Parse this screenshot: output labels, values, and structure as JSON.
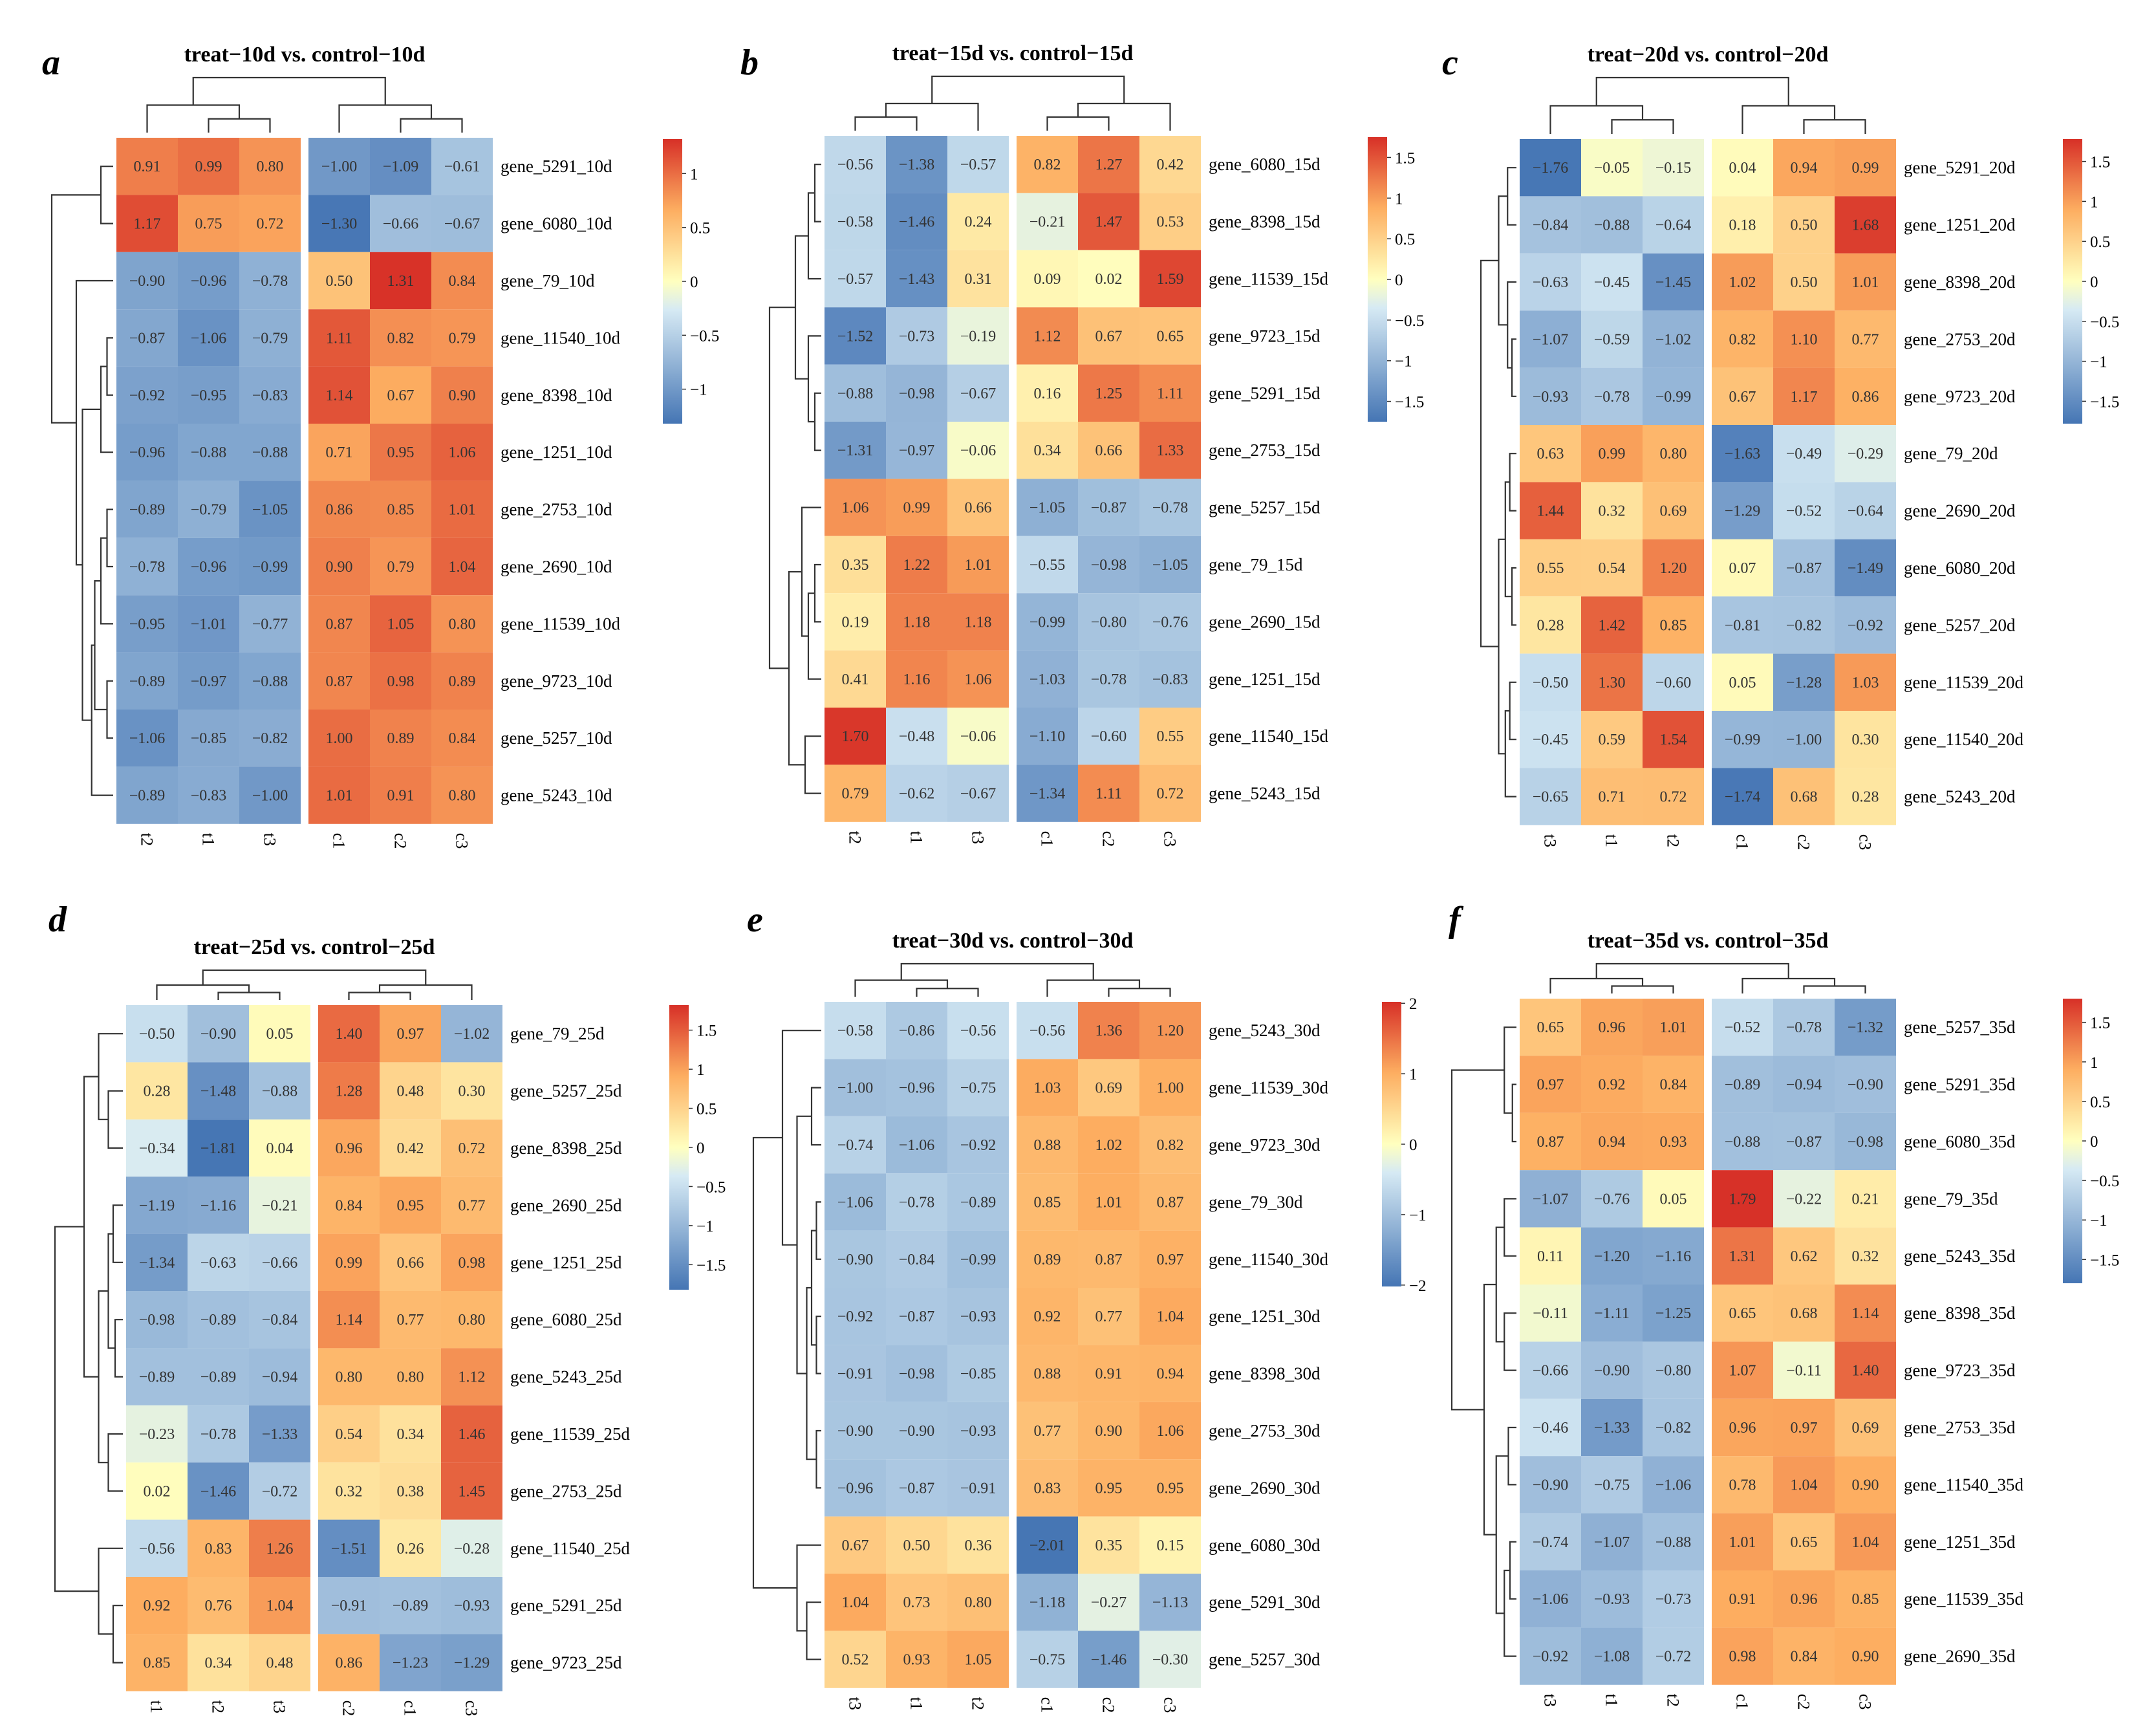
{
  "colors": {
    "low": "#4575b4",
    "mid_low": "#d6eaf4",
    "mid": "#ffffbf",
    "mid_high": "#fdae61",
    "high": "#d73027"
  },
  "chart_data": [
    {
      "type": "heatmap",
      "panel": "a",
      "title": "treat−10d vs. control−10d",
      "columns": [
        "t2",
        "t1",
        "t3",
        "c1",
        "c2",
        "c3"
      ],
      "rows": [
        "gene_5291_10d",
        "gene_6080_10d",
        "gene_79_10d",
        "gene_11540_10d",
        "gene_8398_10d",
        "gene_1251_10d",
        "gene_2753_10d",
        "gene_2690_10d",
        "gene_11539_10d",
        "gene_9723_10d",
        "gene_5257_10d",
        "gene_5243_10d"
      ],
      "values": [
        [
          0.91,
          0.99,
          0.8,
          -1.0,
          -1.09,
          -0.61
        ],
        [
          1.17,
          0.75,
          0.72,
          -1.3,
          -0.66,
          -0.67
        ],
        [
          -0.9,
          -0.96,
          -0.78,
          0.5,
          1.31,
          0.84
        ],
        [
          -0.87,
          -1.06,
          -0.79,
          1.11,
          0.82,
          0.79
        ],
        [
          -0.92,
          -0.95,
          -0.83,
          1.14,
          0.67,
          0.9
        ],
        [
          -0.96,
          -0.88,
          -0.88,
          0.71,
          0.95,
          1.06
        ],
        [
          -0.89,
          -0.79,
          -1.05,
          0.86,
          0.85,
          1.01
        ],
        [
          -0.78,
          -0.96,
          -0.99,
          0.9,
          0.79,
          1.04
        ],
        [
          -0.95,
          -1.01,
          -0.77,
          0.87,
          1.05,
          0.8
        ],
        [
          -0.89,
          -0.97,
          -0.88,
          0.87,
          0.98,
          0.89
        ],
        [
          -1.06,
          -0.85,
          -0.82,
          1.0,
          0.89,
          0.84
        ],
        [
          -0.89,
          -0.83,
          -1.0,
          1.01,
          0.91,
          0.8
        ]
      ],
      "color_range": [
        -1.32,
        1.32
      ],
      "colorbar_ticks": [
        1,
        0.5,
        0,
        -0.5,
        -1
      ],
      "colorbar_labels": [
        "1",
        "0.5",
        "0",
        "−0.5",
        "−1"
      ]
    },
    {
      "type": "heatmap",
      "panel": "b",
      "title": "treat−15d vs. control−15d",
      "columns": [
        "t2",
        "t1",
        "t3",
        "c1",
        "c2",
        "c3"
      ],
      "rows": [
        "gene_6080_15d",
        "gene_8398_15d",
        "gene_11539_15d",
        "gene_9723_15d",
        "gene_5291_15d",
        "gene_2753_15d",
        "gene_5257_15d",
        "gene_79_15d",
        "gene_2690_15d",
        "gene_1251_15d",
        "gene_11540_15d",
        "gene_5243_15d"
      ],
      "values": [
        [
          -0.56,
          -1.38,
          -0.57,
          0.82,
          1.27,
          0.42
        ],
        [
          -0.58,
          -1.46,
          0.24,
          -0.21,
          1.47,
          0.53
        ],
        [
          -0.57,
          -1.43,
          0.31,
          0.09,
          0.02,
          1.59
        ],
        [
          -1.52,
          -0.73,
          -0.19,
          1.12,
          0.67,
          0.65
        ],
        [
          -0.88,
          -0.98,
          -0.67,
          0.16,
          1.25,
          1.11
        ],
        [
          -1.31,
          -0.97,
          -0.06,
          0.34,
          0.66,
          1.33
        ],
        [
          1.06,
          0.99,
          0.66,
          -1.05,
          -0.87,
          -0.78
        ],
        [
          0.35,
          1.22,
          1.01,
          -0.55,
          -0.98,
          -1.05
        ],
        [
          0.19,
          1.18,
          1.18,
          -0.99,
          -0.8,
          -0.76
        ],
        [
          0.41,
          1.16,
          1.06,
          -1.03,
          -0.78,
          -0.83
        ],
        [
          1.7,
          -0.48,
          -0.06,
          -1.1,
          -0.6,
          0.55
        ],
        [
          0.79,
          -0.62,
          -0.67,
          -1.34,
          1.11,
          0.72
        ]
      ],
      "color_range": [
        -1.75,
        1.75
      ],
      "colorbar_ticks": [
        1.5,
        1,
        0.5,
        0,
        -0.5,
        -1,
        -1.5
      ],
      "colorbar_labels": [
        "1.5",
        "1",
        "0.5",
        "0",
        "−0.5",
        "−1",
        "−1.5"
      ]
    },
    {
      "type": "heatmap",
      "panel": "c",
      "title": "treat−20d vs. control−20d",
      "columns": [
        "t3",
        "t1",
        "t2",
        "c1",
        "c2",
        "c3"
      ],
      "rows": [
        "gene_5291_20d",
        "gene_1251_20d",
        "gene_8398_20d",
        "gene_2753_20d",
        "gene_9723_20d",
        "gene_79_20d",
        "gene_2690_20d",
        "gene_6080_20d",
        "gene_5257_20d",
        "gene_11539_20d",
        "gene_11540_20d",
        "gene_5243_20d"
      ],
      "values": [
        [
          -1.76,
          -0.05,
          -0.15,
          0.04,
          0.94,
          0.99
        ],
        [
          -0.84,
          -0.88,
          -0.64,
          0.18,
          0.5,
          1.68
        ],
        [
          -0.63,
          -0.45,
          -1.45,
          1.02,
          0.5,
          1.01
        ],
        [
          -1.07,
          -0.59,
          -1.02,
          0.82,
          1.1,
          0.77
        ],
        [
          -0.93,
          -0.78,
          -0.99,
          0.67,
          1.17,
          0.86
        ],
        [
          0.63,
          0.99,
          0.8,
          -1.63,
          -0.49,
          -0.29
        ],
        [
          1.44,
          0.32,
          0.69,
          -1.29,
          -0.52,
          -0.64
        ],
        [
          0.55,
          0.54,
          1.2,
          0.07,
          -0.87,
          -1.49
        ],
        [
          0.28,
          1.42,
          0.85,
          -0.81,
          -0.82,
          -0.92
        ],
        [
          -0.5,
          1.3,
          -0.6,
          0.05,
          -1.28,
          1.03
        ],
        [
          -0.45,
          0.59,
          1.54,
          -0.99,
          -1.0,
          0.3
        ],
        [
          -0.65,
          0.71,
          0.72,
          -1.74,
          0.68,
          0.28
        ]
      ],
      "color_range": [
        -1.78,
        1.78
      ],
      "colorbar_ticks": [
        1.5,
        1,
        0.5,
        0,
        -0.5,
        -1,
        -1.5
      ],
      "colorbar_labels": [
        "1.5",
        "1",
        "0.5",
        "0",
        "−0.5",
        "−1",
        "−1.5"
      ]
    },
    {
      "type": "heatmap",
      "panel": "d",
      "title": "treat−25d vs. control−25d",
      "columns": [
        "t1",
        "t2",
        "t3",
        "c2",
        "c1",
        "c3"
      ],
      "rows": [
        "gene_79_25d",
        "gene_5257_25d",
        "gene_8398_25d",
        "gene_2690_25d",
        "gene_1251_25d",
        "gene_6080_25d",
        "gene_5243_25d",
        "gene_11539_25d",
        "gene_2753_25d",
        "gene_11540_25d",
        "gene_5291_25d",
        "gene_9723_25d"
      ],
      "values": [
        [
          -0.5,
          -0.9,
          0.05,
          1.4,
          0.97,
          -1.02
        ],
        [
          0.28,
          -1.48,
          -0.88,
          1.28,
          0.48,
          0.3
        ],
        [
          -0.34,
          -1.81,
          0.04,
          0.96,
          0.42,
          0.72
        ],
        [
          -1.19,
          -1.16,
          -0.21,
          0.84,
          0.95,
          0.77
        ],
        [
          -1.34,
          -0.63,
          -0.66,
          0.99,
          0.66,
          0.98
        ],
        [
          -0.98,
          -0.89,
          -0.84,
          1.14,
          0.77,
          0.8
        ],
        [
          -0.89,
          -0.89,
          -0.94,
          0.8,
          0.8,
          1.12
        ],
        [
          -0.23,
          -0.78,
          -1.33,
          0.54,
          0.34,
          1.46
        ],
        [
          0.02,
          -1.46,
          -0.72,
          0.32,
          0.38,
          1.45
        ],
        [
          -0.56,
          0.83,
          1.26,
          -1.51,
          0.26,
          -0.28
        ],
        [
          0.92,
          0.76,
          1.04,
          -0.91,
          -0.89,
          -0.93
        ],
        [
          0.85,
          0.34,
          0.48,
          0.86,
          -1.23,
          -1.29
        ]
      ],
      "color_range": [
        -1.82,
        1.82
      ],
      "colorbar_ticks": [
        1.5,
        1,
        0.5,
        0,
        -0.5,
        -1,
        -1.5
      ],
      "colorbar_labels": [
        "1.5",
        "1",
        "0.5",
        "0",
        "−0.5",
        "−1",
        "−1.5"
      ]
    },
    {
      "type": "heatmap",
      "panel": "e",
      "title": "treat−30d vs. control−30d",
      "columns": [
        "t3",
        "t1",
        "t2",
        "c1",
        "c2",
        "c3"
      ],
      "rows": [
        "gene_5243_30d",
        "gene_11539_30d",
        "gene_9723_30d",
        "gene_79_30d",
        "gene_11540_30d",
        "gene_1251_30d",
        "gene_8398_30d",
        "gene_2753_30d",
        "gene_2690_30d",
        "gene_6080_30d",
        "gene_5291_30d",
        "gene_5257_30d"
      ],
      "values": [
        [
          -0.58,
          -0.86,
          -0.56,
          -0.56,
          1.36,
          1.2
        ],
        [
          -1.0,
          -0.96,
          -0.75,
          1.03,
          0.69,
          1.0
        ],
        [
          -0.74,
          -1.06,
          -0.92,
          0.88,
          1.02,
          0.82
        ],
        [
          -1.06,
          -0.78,
          -0.89,
          0.85,
          1.01,
          0.87
        ],
        [
          -0.9,
          -0.84,
          -0.99,
          0.89,
          0.87,
          0.97
        ],
        [
          -0.92,
          -0.87,
          -0.93,
          0.92,
          0.77,
          1.04
        ],
        [
          -0.91,
          -0.98,
          -0.85,
          0.88,
          0.91,
          0.94
        ],
        [
          -0.9,
          -0.9,
          -0.93,
          0.77,
          0.9,
          1.06
        ],
        [
          -0.96,
          -0.87,
          -0.91,
          0.83,
          0.95,
          0.95
        ],
        [
          0.67,
          0.5,
          0.36,
          -2.01,
          0.35,
          0.15
        ],
        [
          1.04,
          0.73,
          0.8,
          -1.18,
          -0.27,
          -1.13
        ],
        [
          0.52,
          0.93,
          1.05,
          -0.75,
          -1.46,
          -0.3
        ]
      ],
      "color_range": [
        -2.02,
        2.02
      ],
      "colorbar_ticks": [
        2,
        1,
        0,
        -1,
        -2
      ],
      "colorbar_labels": [
        "2",
        "1",
        "0",
        "−1",
        "−2"
      ]
    },
    {
      "type": "heatmap",
      "panel": "f",
      "title": "treat−35d vs. control−35d",
      "columns": [
        "t3",
        "t1",
        "t2",
        "c1",
        "c2",
        "c3"
      ],
      "rows": [
        "gene_5257_35d",
        "gene_5291_35d",
        "gene_6080_35d",
        "gene_79_35d",
        "gene_5243_35d",
        "gene_8398_35d",
        "gene_9723_35d",
        "gene_2753_35d",
        "gene_11540_35d",
        "gene_1251_35d",
        "gene_11539_35d",
        "gene_2690_35d"
      ],
      "values": [
        [
          0.65,
          0.96,
          1.01,
          -0.52,
          -0.78,
          -1.32
        ],
        [
          0.97,
          0.92,
          0.84,
          -0.89,
          -0.94,
          -0.9
        ],
        [
          0.87,
          0.94,
          0.93,
          -0.88,
          -0.87,
          -0.98
        ],
        [
          -1.07,
          -0.76,
          0.05,
          1.79,
          -0.22,
          0.21
        ],
        [
          0.11,
          -1.2,
          -1.16,
          1.31,
          0.62,
          0.32
        ],
        [
          -0.11,
          -1.11,
          -1.25,
          0.65,
          0.68,
          1.14
        ],
        [
          -0.66,
          -0.9,
          -0.8,
          1.07,
          -0.11,
          1.4
        ],
        [
          -0.46,
          -1.33,
          -0.82,
          0.96,
          0.97,
          0.69
        ],
        [
          -0.9,
          -0.75,
          -1.06,
          0.78,
          1.04,
          0.9
        ],
        [
          -0.74,
          -1.07,
          -0.88,
          1.01,
          0.65,
          1.04
        ],
        [
          -1.06,
          -0.93,
          -0.73,
          0.91,
          0.96,
          0.85
        ],
        [
          -0.92,
          -1.08,
          -0.72,
          0.98,
          0.84,
          0.9
        ]
      ],
      "color_range": [
        -1.8,
        1.8
      ],
      "colorbar_ticks": [
        1.5,
        1,
        0.5,
        0,
        -0.5,
        -1,
        -1.5
      ],
      "colorbar_labels": [
        "1.5",
        "1",
        "0.5",
        "0",
        "−0.5",
        "−1",
        "−1.5"
      ]
    }
  ]
}
